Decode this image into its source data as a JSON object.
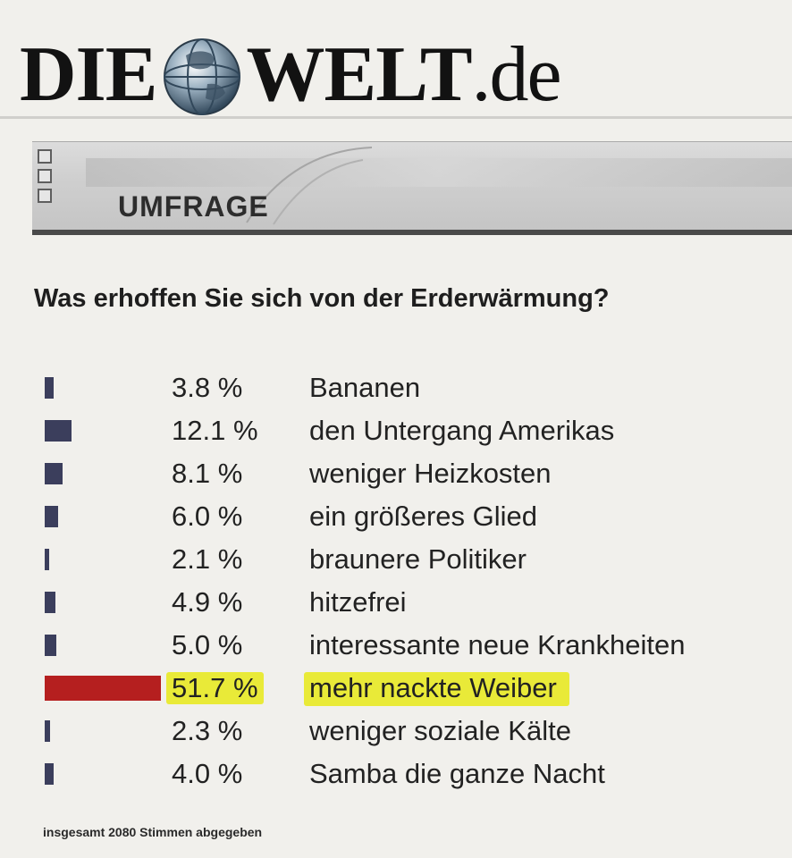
{
  "site": {
    "name_left": "DIE",
    "name_right": "WELT",
    "name_suffix": ".de",
    "logo_icon": "globe-icon"
  },
  "section": {
    "title": "UMFRAGE"
  },
  "poll": {
    "question": "Was erhoffen Sie sich von der Erderwärmung?",
    "options": [
      {
        "percent": "3.8 %",
        "label": "Bananen",
        "value": 3.8
      },
      {
        "percent": "12.1 %",
        "label": "den Untergang Amerikas",
        "value": 12.1
      },
      {
        "percent": "8.1 %",
        "label": "weniger Heizkosten",
        "value": 8.1
      },
      {
        "percent": "6.0 %",
        "label": "ein größeres Glied",
        "value": 6.0
      },
      {
        "percent": "2.1 %",
        "label": "braunere Politiker",
        "value": 2.1
      },
      {
        "percent": "4.9 %",
        "label": "hitzefrei",
        "value": 4.9
      },
      {
        "percent": "5.0 %",
        "label": "interessante neue Krankheiten",
        "value": 5.0
      },
      {
        "percent": "51.7 %",
        "label": "mehr nackte Weiber",
        "value": 51.7
      },
      {
        "percent": "2.3 %",
        "label": "weniger soziale Kälte",
        "value": 2.3
      },
      {
        "percent": "4.0 %",
        "label": "Samba die ganze Nacht",
        "value": 4.0
      }
    ],
    "total_votes_text": "insgesamt 2080 Stimmen abgegeben"
  },
  "colors": {
    "bar": "#3b3e5c",
    "bar_max": "#b51f1f",
    "highlight": "#e9ea38"
  }
}
